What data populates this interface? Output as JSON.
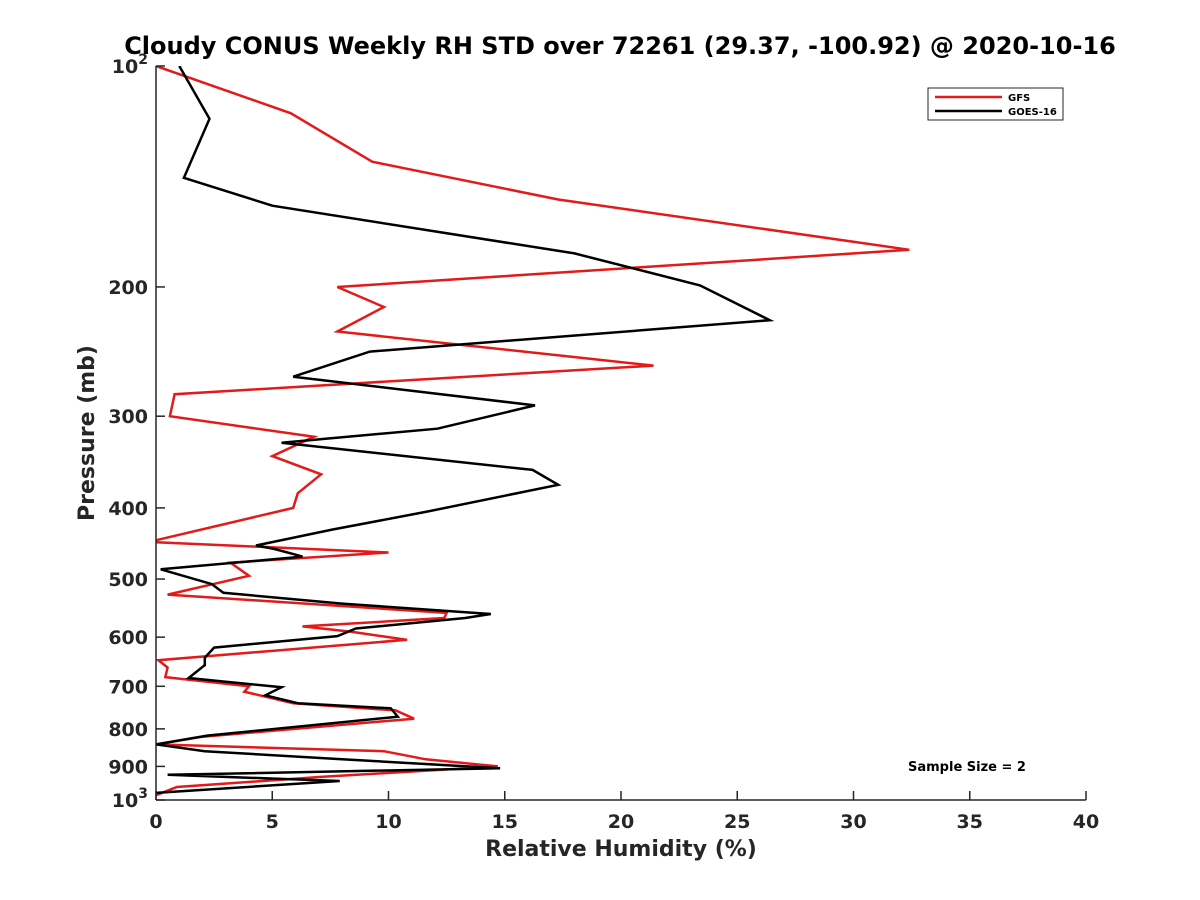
{
  "chart_data": {
    "type": "line",
    "title": "Cloudy CONUS Weekly RH STD over 72261 (29.37, -100.92) @ 2020-10-16",
    "xlabel": "Relative Humidity (%)",
    "ylabel": "Pressure (mb)",
    "xlim": [
      0,
      40
    ],
    "ylim": [
      100,
      1000
    ],
    "y_scale": "log",
    "y_reversed": true,
    "grid": false,
    "legend_position": "top-right",
    "x_ticks": [
      {
        "value": 0,
        "label": "0"
      },
      {
        "value": 5,
        "label": "5"
      },
      {
        "value": 10,
        "label": "10"
      },
      {
        "value": 15,
        "label": "15"
      },
      {
        "value": 20,
        "label": "20"
      },
      {
        "value": 25,
        "label": "25"
      },
      {
        "value": 30,
        "label": "30"
      },
      {
        "value": 35,
        "label": "35"
      },
      {
        "value": 40,
        "label": "40"
      }
    ],
    "y_ticks": [
      {
        "value": 100,
        "label": "10",
        "sup": "2"
      },
      {
        "value": 200,
        "label": "200"
      },
      {
        "value": 300,
        "label": "300"
      },
      {
        "value": 400,
        "label": "400"
      },
      {
        "value": 500,
        "label": "500"
      },
      {
        "value": 600,
        "label": "600"
      },
      {
        "value": 700,
        "label": "700"
      },
      {
        "value": 800,
        "label": "800"
      },
      {
        "value": 900,
        "label": "900"
      },
      {
        "value": 1000,
        "label": "10",
        "sup": "3"
      }
    ],
    "series": [
      {
        "name": "GFS",
        "color": "#e41a1a",
        "points": [
          [
            0.0,
            100
          ],
          [
            5.8,
            116
          ],
          [
            9.3,
            135
          ],
          [
            17.3,
            152
          ],
          [
            32.4,
            178
          ],
          [
            7.8,
            200
          ],
          [
            9.8,
            213
          ],
          [
            7.8,
            230
          ],
          [
            21.4,
            256
          ],
          [
            0.8,
            280
          ],
          [
            0.6,
            300
          ],
          [
            6.8,
            320
          ],
          [
            5.0,
            340
          ],
          [
            7.1,
            360
          ],
          [
            6.1,
            382
          ],
          [
            5.9,
            400
          ],
          [
            -0.3,
            445
          ],
          [
            10.0,
            460
          ],
          [
            3.2,
            475
          ],
          [
            4.0,
            495
          ],
          [
            0.5,
            525
          ],
          [
            12.5,
            556
          ],
          [
            12.4,
            565
          ],
          [
            6.3,
            580
          ],
          [
            8.4,
            590
          ],
          [
            10.8,
            605
          ],
          [
            0.1,
            645
          ],
          [
            0.5,
            660
          ],
          [
            0.4,
            680
          ],
          [
            4.0,
            700
          ],
          [
            3.8,
            712
          ],
          [
            5.9,
            738
          ],
          [
            10.3,
            755
          ],
          [
            11.1,
            775
          ],
          [
            2.0,
            820
          ],
          [
            0.0,
            840
          ],
          [
            9.8,
            858
          ],
          [
            11.6,
            880
          ],
          [
            14.7,
            900
          ],
          [
            7.1,
            930
          ],
          [
            0.9,
            960
          ],
          [
            0.0,
            985
          ]
        ]
      },
      {
        "name": "GOES-16",
        "color": "#000000",
        "points": [
          [
            1.0,
            100
          ],
          [
            2.3,
            118
          ],
          [
            1.2,
            142
          ],
          [
            5.0,
            155
          ],
          [
            18.0,
            180
          ],
          [
            23.4,
            199
          ],
          [
            26.4,
            222
          ],
          [
            9.2,
            245
          ],
          [
            5.9,
            265
          ],
          [
            16.3,
            290
          ],
          [
            12.1,
            312
          ],
          [
            5.4,
            326
          ],
          [
            16.2,
            355
          ],
          [
            17.3,
            372
          ],
          [
            11.6,
            405
          ],
          [
            7.6,
            428
          ],
          [
            4.3,
            450
          ],
          [
            5.1,
            455
          ],
          [
            6.3,
            466
          ],
          [
            0.2,
            485
          ],
          [
            2.4,
            508
          ],
          [
            2.9,
            522
          ],
          [
            8.0,
            540
          ],
          [
            14.4,
            558
          ],
          [
            13.3,
            565
          ],
          [
            8.6,
            584
          ],
          [
            7.8,
            598
          ],
          [
            2.5,
            620
          ],
          [
            2.1,
            640
          ],
          [
            2.1,
            655
          ],
          [
            1.4,
            682
          ],
          [
            3.0,
            690
          ],
          [
            5.4,
            702
          ],
          [
            4.7,
            720
          ],
          [
            6.1,
            738
          ],
          [
            10.1,
            750
          ],
          [
            10.4,
            770
          ],
          [
            2.2,
            817
          ],
          [
            0.0,
            840
          ],
          [
            2.1,
            858
          ],
          [
            8.0,
            880
          ],
          [
            14.8,
            905
          ],
          [
            0.5,
            924
          ],
          [
            7.9,
            942
          ],
          [
            0.0,
            978
          ]
        ]
      }
    ],
    "annotations": [
      {
        "text": "Sample Size = 2"
      }
    ]
  }
}
